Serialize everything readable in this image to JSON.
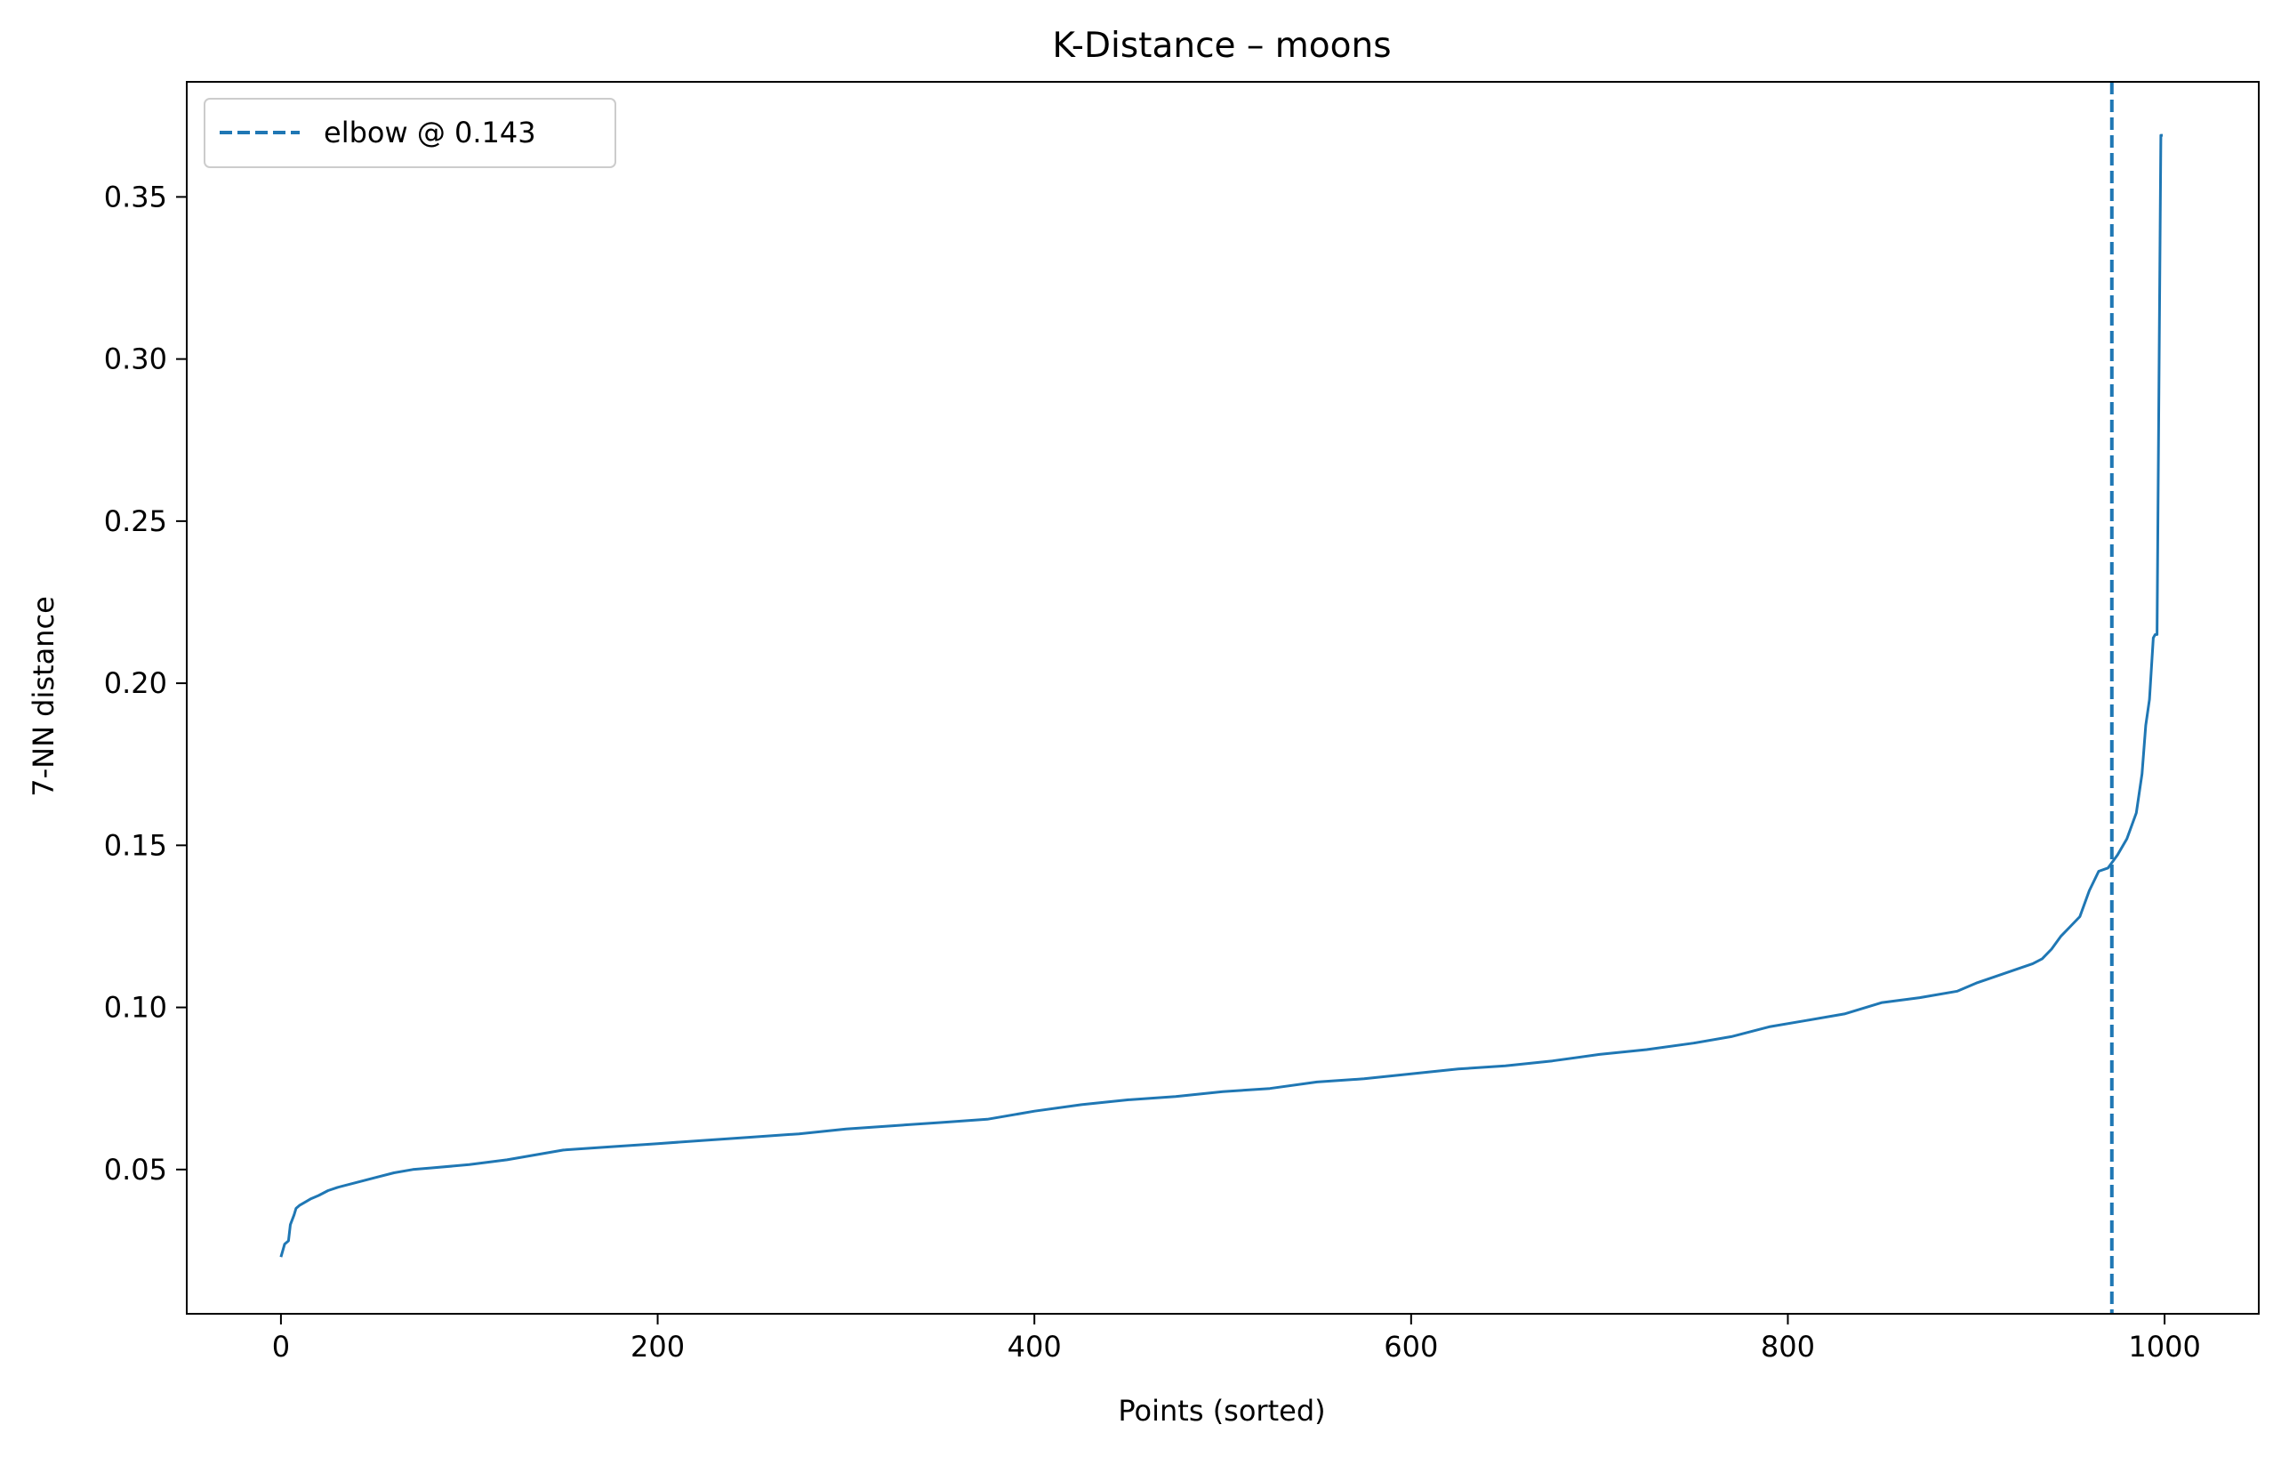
{
  "chart_data": {
    "type": "line",
    "title": "K-Distance – moons",
    "xlabel": "Points (sorted)",
    "ylabel": "7-NN distance",
    "xlim": [
      -50,
      1050
    ],
    "ylim": [
      0.0055,
      0.3855
    ],
    "x_ticks": [
      0,
      200,
      400,
      600,
      800,
      1000
    ],
    "x_tick_labels": [
      "0",
      "200",
      "400",
      "600",
      "800",
      "1000"
    ],
    "y_ticks": [
      0.05,
      0.1,
      0.15,
      0.2,
      0.25,
      0.3,
      0.35
    ],
    "y_tick_labels": [
      "0.05",
      "0.10",
      "0.15",
      "0.20",
      "0.25",
      "0.30",
      "0.35"
    ],
    "grid": false,
    "legend_position": "top-left",
    "series": [
      {
        "color": "#1f77b4",
        "style": "solid",
        "x": [
          0,
          1,
          2,
          4,
          5,
          7,
          8,
          10,
          13,
          16,
          20,
          25,
          30,
          40,
          50,
          60,
          70,
          80,
          100,
          120,
          150,
          175,
          200,
          225,
          250,
          275,
          300,
          325,
          350,
          375,
          400,
          425,
          450,
          475,
          500,
          525,
          550,
          575,
          600,
          625,
          650,
          675,
          700,
          725,
          750,
          770,
          790,
          810,
          830,
          850,
          870,
          890,
          900,
          910,
          920,
          930,
          935,
          940,
          945,
          950,
          955,
          960,
          965,
          970,
          975,
          980,
          985,
          988,
          990,
          992,
          994,
          995,
          996,
          997,
          998,
          999
        ],
        "y": [
          0.023,
          0.025,
          0.027,
          0.028,
          0.033,
          0.036,
          0.038,
          0.039,
          0.04,
          0.041,
          0.042,
          0.0435,
          0.0445,
          0.046,
          0.0475,
          0.049,
          0.05,
          0.0505,
          0.0515,
          0.053,
          0.056,
          0.057,
          0.058,
          0.059,
          0.06,
          0.061,
          0.0625,
          0.0635,
          0.0645,
          0.0655,
          0.068,
          0.07,
          0.0715,
          0.0725,
          0.074,
          0.075,
          0.077,
          0.078,
          0.0795,
          0.081,
          0.082,
          0.0835,
          0.0855,
          0.087,
          0.089,
          0.091,
          0.094,
          0.096,
          0.098,
          0.1015,
          0.103,
          0.105,
          0.1075,
          0.1095,
          0.1115,
          0.1135,
          0.115,
          0.118,
          0.122,
          0.125,
          0.128,
          0.136,
          0.142,
          0.143,
          0.147,
          0.152,
          0.16,
          0.172,
          0.187,
          0.195,
          0.214,
          0.215,
          0.215,
          0.29,
          0.369,
          0.369
        ]
      }
    ],
    "elbow": {
      "x": 972,
      "value": 0.143,
      "label": "elbow @ 0.143",
      "color": "#1f77b4",
      "style": "dashed"
    }
  }
}
